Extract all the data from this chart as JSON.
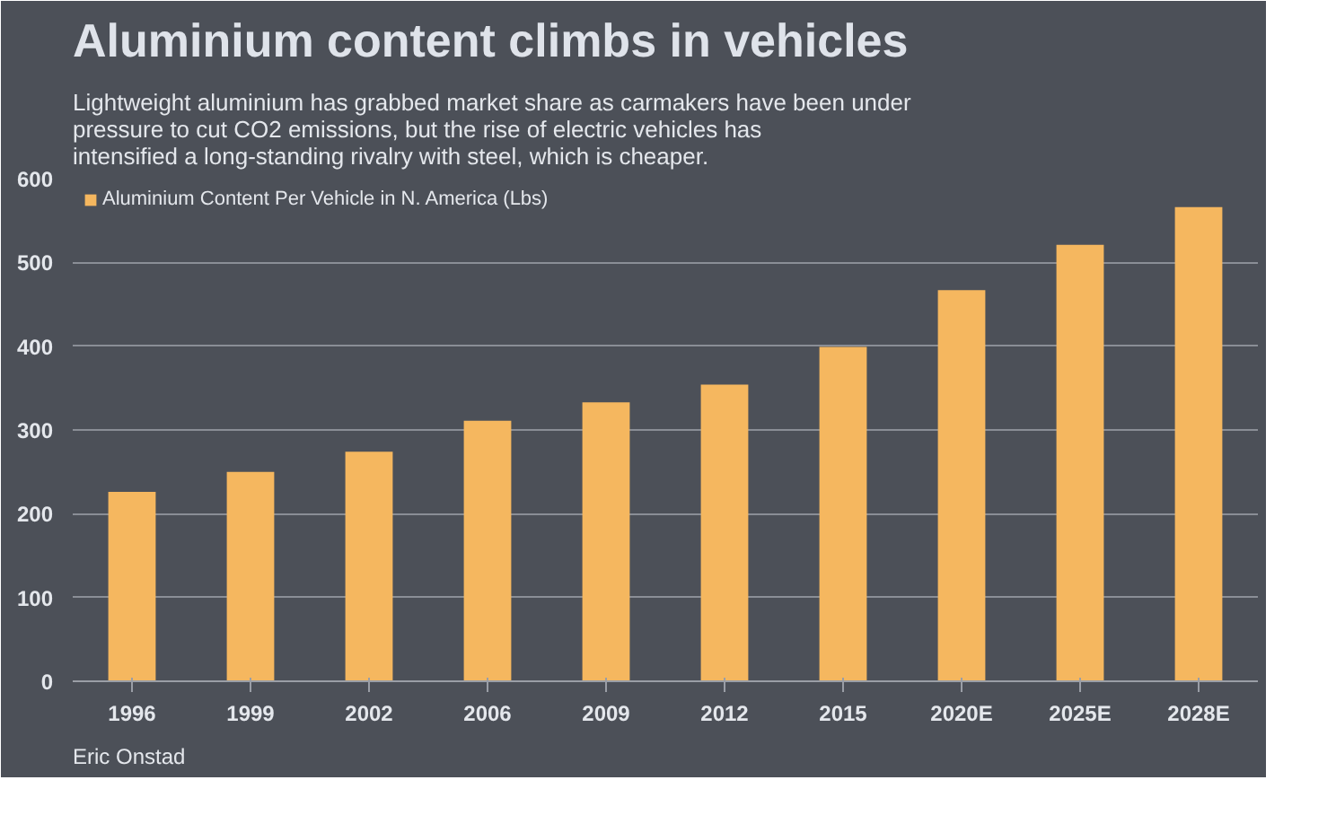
{
  "chart_data": {
    "type": "bar",
    "title": "Aluminium content climbs in vehicles",
    "subtitle": "Lightweight aluminium has grabbed market share as carmakers have been under pressure to cut CO2 emissions, but the rise of electric vehicles has intensified a long-standing rivalry with steel, which is cheaper.",
    "annotations": [
      "Eric Onstad"
    ],
    "categories": [
      "1996",
      "1999",
      "2002",
      "2006",
      "2009",
      "2012",
      "2015",
      "2020E",
      "2025E",
      "2028E"
    ],
    "series": [
      {
        "name": "Aluminium Content Per Vehicle in N. America (Lbs)",
        "color": "#f5b75f",
        "values": [
          226,
          250,
          274,
          311,
          333,
          354,
          399,
          467,
          521,
          566
        ]
      }
    ],
    "ylim": [
      0,
      600
    ],
    "yticks": [
      0,
      100,
      200,
      300,
      400,
      500,
      600
    ],
    "grid": "y",
    "legend": "top left"
  }
}
